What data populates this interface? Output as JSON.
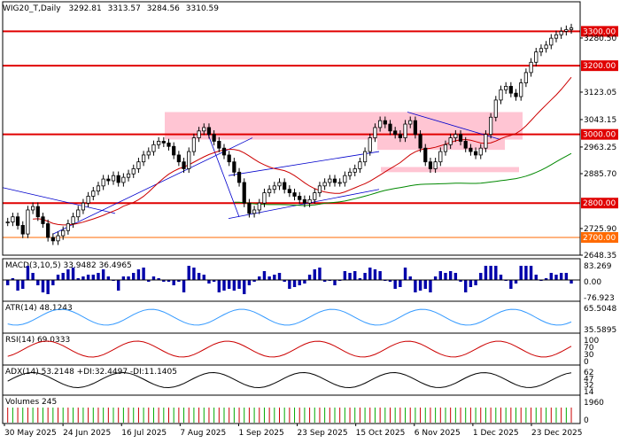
{
  "chart_data": {
    "type": "candlestick",
    "symbol": "WIG20_T,Daily",
    "ohlc": [
      "3292.81",
      "3313.57",
      "3284.56",
      "3310.59"
    ],
    "x_ticks": [
      "30 May 2025",
      "24 Jun 2025",
      "16 Jul 2025",
      "7 Aug 2025",
      "1 Sep 2025",
      "23 Sep 2025",
      "15 Oct 2025",
      "6 Nov 2025",
      "1 Dec 2025",
      "23 Dec 2025"
    ],
    "y_ticks": [
      "3300.00",
      "3280.50",
      "3200.00",
      "3123.05",
      "3043.15",
      "3000.00",
      "2963.25",
      "2885.70",
      "2800.00",
      "2725.90",
      "2700.00",
      "2648.35"
    ],
    "y_range": [
      2648.35,
      3350
    ],
    "levels": [
      {
        "value": 3300.0,
        "label": "3300.00",
        "color": "#e00000",
        "tag": "#e00000"
      },
      {
        "value": 3200.0,
        "label": "3200.00",
        "color": "#e00000",
        "tag": "#e00000"
      },
      {
        "value": 3000.0,
        "label": "3000.00",
        "color": "#e00000",
        "tag": "#e00000"
      },
      {
        "value": 2800.0,
        "label": "2800.00",
        "color": "#e00000",
        "tag": "#e00000"
      },
      {
        "value": 2700.0,
        "label": "2700.00",
        "color": "#ff6a00",
        "tag": "#ff6a00"
      }
    ],
    "zones": [
      {
        "x0": 186,
        "x1": 590,
        "y0": 3065,
        "y1": 2985
      },
      {
        "x0": 426,
        "x1": 570,
        "y0": 2985,
        "y1": 2955
      },
      {
        "x0": 430,
        "x1": 586,
        "y0": 2905,
        "y1": 2890
      }
    ],
    "closes": [
      2745,
      2760,
      2735,
      2710,
      2780,
      2790,
      2760,
      2740,
      2700,
      2690,
      2705,
      2720,
      2740,
      2760,
      2780,
      2800,
      2820,
      2835,
      2850,
      2870,
      2865,
      2880,
      2860,
      2875,
      2885,
      2900,
      2920,
      2940,
      2950,
      2970,
      2980,
      2975,
      2965,
      2940,
      2920,
      2900,
      2950,
      2990,
      3010,
      3020,
      3000,
      2980,
      2960,
      2940,
      2920,
      2890,
      2860,
      2800,
      2770,
      2780,
      2800,
      2830,
      2840,
      2850,
      2860,
      2840,
      2830,
      2820,
      2810,
      2800,
      2810,
      2830,
      2850,
      2860,
      2870,
      2860,
      2860,
      2880,
      2890,
      2900,
      2920,
      2950,
      2990,
      3020,
      3040,
      3030,
      3010,
      3000,
      2990,
      3030,
      3040,
      3000,
      2960,
      2920,
      2900,
      2920,
      2950,
      2970,
      2990,
      3000,
      2980,
      2960,
      2950,
      2940,
      2960,
      3000,
      3050,
      3100,
      3130,
      3140,
      3120,
      3110,
      3150,
      3180,
      3210,
      3240,
      3250,
      3260,
      3280,
      3290,
      3300,
      3305,
      3310
    ],
    "annotations": {
      "panels": [
        {
          "id": "macd",
          "title": "MACD(3,10,5) 33.9482 36.4965",
          "ticks": [
            "83.269",
            "0.00",
            "-76.923"
          ]
        },
        {
          "id": "atr",
          "title": "ATR(14) 48.1243",
          "ticks": [
            "65.5048",
            "35.5895"
          ]
        },
        {
          "id": "rsi",
          "title": "RSI(14) 69.0333",
          "ticks": [
            "100",
            "70",
            "30",
            "0"
          ]
        },
        {
          "id": "adx",
          "title": "ADX(14) 53.2148 +DI:32.4497 -DI:11.1405",
          "ticks": [
            "62",
            "47",
            "32",
            "14"
          ]
        },
        {
          "id": "vol",
          "title": "Volumes 245",
          "ticks": [
            "1960",
            "0"
          ]
        }
      ]
    },
    "grid": false,
    "colors": {
      "bull": "#00aa00",
      "bear": "#000000",
      "ma_fast": "#cc0000",
      "ma_slow": "#008800",
      "trend": "#0000cc",
      "zone": "#ffb6c8"
    }
  }
}
